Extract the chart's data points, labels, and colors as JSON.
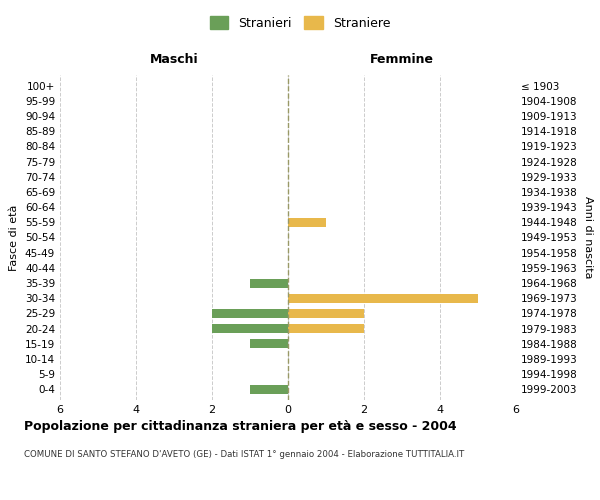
{
  "age_groups": [
    "0-4",
    "5-9",
    "10-14",
    "15-19",
    "20-24",
    "25-29",
    "30-34",
    "35-39",
    "40-44",
    "45-49",
    "50-54",
    "55-59",
    "60-64",
    "65-69",
    "70-74",
    "75-79",
    "80-84",
    "85-89",
    "90-94",
    "95-99",
    "100+"
  ],
  "birth_years": [
    "1999-2003",
    "1994-1998",
    "1989-1993",
    "1984-1988",
    "1979-1983",
    "1974-1978",
    "1969-1973",
    "1964-1968",
    "1959-1963",
    "1954-1958",
    "1949-1953",
    "1944-1948",
    "1939-1943",
    "1934-1938",
    "1929-1933",
    "1924-1928",
    "1919-1923",
    "1914-1918",
    "1909-1913",
    "1904-1908",
    "≤ 1903"
  ],
  "males": [
    1,
    0,
    0,
    1,
    2,
    2,
    0,
    1,
    0,
    0,
    0,
    0,
    0,
    0,
    0,
    0,
    0,
    0,
    0,
    0,
    0
  ],
  "females": [
    0,
    0,
    0,
    0,
    2,
    2,
    5,
    0,
    0,
    0,
    0,
    1,
    0,
    0,
    0,
    0,
    0,
    0,
    0,
    0,
    0
  ],
  "male_color": "#6a9f58",
  "female_color": "#e8b84b",
  "title": "Popolazione per cittadinanza straniera per età e sesso - 2004",
  "subtitle": "COMUNE DI SANTO STEFANO D'AVETO (GE) - Dati ISTAT 1° gennaio 2004 - Elaborazione TUTTITALIA.IT",
  "xlabel_left": "Maschi",
  "xlabel_right": "Femmine",
  "ylabel_left": "Fasce di età",
  "ylabel_right": "Anni di nascita",
  "legend_male": "Stranieri",
  "legend_female": "Straniere",
  "xlim": 6,
  "background_color": "#ffffff",
  "grid_color": "#cccccc"
}
